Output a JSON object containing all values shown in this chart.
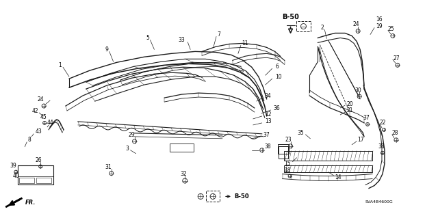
{
  "background_color": "#ffffff",
  "diagram_code": "SVA4B4600G",
  "b50_label": "B-50",
  "fr_label": "FR.",
  "fig_width": 6.4,
  "fig_height": 3.19,
  "dpi": 100,
  "line_color": "#1a1a1a",
  "text_color": "#000000",
  "label_fontsize": 5.5
}
